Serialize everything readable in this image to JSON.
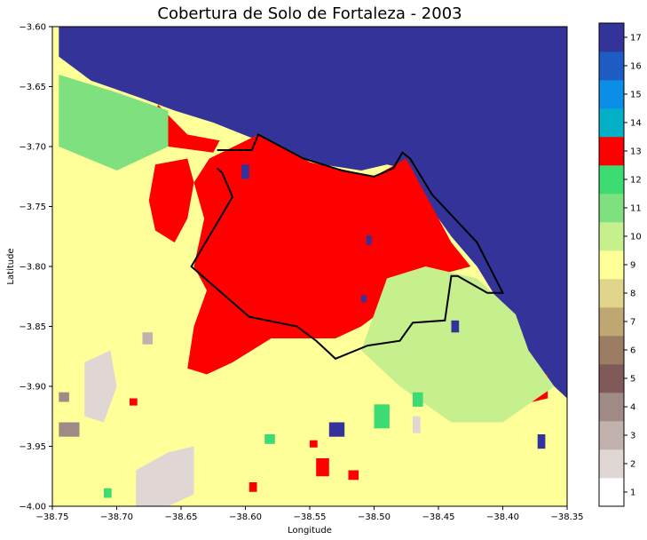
{
  "chart_data": {
    "type": "heatmap",
    "title": "Cobertura de Solo de Fortaleza - 2003",
    "xlabel": "Longitude",
    "ylabel": "Latitude",
    "xlim": [
      -38.75,
      -38.35
    ],
    "ylim": [
      -4.0,
      -3.6
    ],
    "xticks": [
      -38.75,
      -38.7,
      -38.65,
      -38.6,
      -38.55,
      -38.5,
      -38.45,
      -38.4,
      -38.35
    ],
    "xtick_labels": [
      "−38.75",
      "−38.70",
      "−38.65",
      "−38.60",
      "−38.55",
      "−38.50",
      "−38.45",
      "−38.40",
      "−38.35"
    ],
    "yticks": [
      -3.6,
      -3.65,
      -3.7,
      -3.75,
      -3.8,
      -3.85,
      -3.9,
      -3.95,
      -4.0
    ],
    "ytick_labels": [
      "−3.60",
      "−3.65",
      "−3.70",
      "−3.75",
      "−3.80",
      "−3.85",
      "−3.90",
      "−3.95",
      "−4.00"
    ],
    "grid": false,
    "colorbar": {
      "classes": [
        1,
        2,
        3,
        4,
        5,
        6,
        7,
        8,
        9,
        10,
        11,
        12,
        13,
        14,
        15,
        16,
        17
      ],
      "labels": [
        "1",
        "2",
        "3",
        "4",
        "5",
        "6",
        "7",
        "8",
        "9",
        "10",
        "11",
        "12",
        "13",
        "14",
        "15",
        "16",
        "17"
      ],
      "colors": [
        "#ffffff",
        "#e0d6d4",
        "#c2b2ae",
        "#a08a86",
        "#7f5a58",
        "#9c7c62",
        "#bfa774",
        "#e0d58a",
        "#ffff99",
        "#c6ef8e",
        "#7ee07e",
        "#3ddc72",
        "#ff0000",
        "#04b0c8",
        "#0a8ee8",
        "#1e5cc4",
        "#333399"
      ]
    },
    "regions": [
      {
        "class": 17,
        "name": "ocean",
        "polygon": [
          [
            -38.745,
            -3.6
          ],
          [
            -38.35,
            -3.6
          ],
          [
            -38.35,
            -3.91
          ],
          [
            -38.37,
            -3.89
          ],
          [
            -38.385,
            -3.865
          ],
          [
            -38.4,
            -3.835
          ],
          [
            -38.42,
            -3.8
          ],
          [
            -38.44,
            -3.775
          ],
          [
            -38.46,
            -3.745
          ],
          [
            -38.47,
            -3.72
          ],
          [
            -38.49,
            -3.715
          ],
          [
            -38.51,
            -3.72
          ],
          [
            -38.54,
            -3.715
          ],
          [
            -38.57,
            -3.705
          ],
          [
            -38.59,
            -3.695
          ],
          [
            -38.625,
            -3.68
          ],
          [
            -38.655,
            -3.67
          ],
          [
            -38.68,
            -3.66
          ],
          [
            -38.72,
            -3.645
          ],
          [
            -38.745,
            -3.625
          ]
        ]
      },
      {
        "class": 13,
        "name": "urban-core",
        "polygon": [
          [
            -38.628,
            -3.71
          ],
          [
            -38.59,
            -3.69
          ],
          [
            -38.55,
            -3.713
          ],
          [
            -38.5,
            -3.725
          ],
          [
            -38.475,
            -3.71
          ],
          [
            -38.46,
            -3.74
          ],
          [
            -38.44,
            -3.78
          ],
          [
            -38.425,
            -3.8
          ],
          [
            -38.46,
            -3.81
          ],
          [
            -38.485,
            -3.83
          ],
          [
            -38.51,
            -3.85
          ],
          [
            -38.53,
            -3.86
          ],
          [
            -38.56,
            -3.86
          ],
          [
            -38.58,
            -3.86
          ],
          [
            -38.61,
            -3.88
          ],
          [
            -38.63,
            -3.89
          ],
          [
            -38.645,
            -3.885
          ],
          [
            -38.64,
            -3.85
          ],
          [
            -38.63,
            -3.82
          ],
          [
            -38.64,
            -3.8
          ],
          [
            -38.632,
            -3.76
          ],
          [
            -38.64,
            -3.73
          ]
        ]
      },
      {
        "class": 13,
        "name": "urban-northwest",
        "polygon": [
          [
            -38.67,
            -3.715
          ],
          [
            -38.645,
            -3.71
          ],
          [
            -38.64,
            -3.73
          ],
          [
            -38.645,
            -3.76
          ],
          [
            -38.655,
            -3.78
          ],
          [
            -38.67,
            -3.77
          ],
          [
            -38.675,
            -3.745
          ]
        ]
      },
      {
        "class": 13,
        "name": "urban-coast-north",
        "polygon": [
          [
            -38.668,
            -3.665
          ],
          [
            -38.645,
            -3.69
          ],
          [
            -38.62,
            -3.695
          ],
          [
            -38.625,
            -3.705
          ],
          [
            -38.66,
            -3.7
          ],
          [
            -38.672,
            -3.685
          ]
        ]
      },
      {
        "class": 13,
        "name": "urban-east",
        "polygon": [
          [
            -38.385,
            -3.89
          ],
          [
            -38.365,
            -3.89
          ],
          [
            -38.365,
            -3.91
          ],
          [
            -38.385,
            -3.915
          ],
          [
            -38.395,
            -3.905
          ]
        ]
      },
      {
        "class": 13,
        "name": "urban-south",
        "polygon": [
          [
            -38.545,
            -3.96
          ],
          [
            -38.535,
            -3.96
          ],
          [
            -38.535,
            -3.975
          ],
          [
            -38.545,
            -3.975
          ]
        ]
      },
      {
        "class": 2,
        "name": "bare-soil-west",
        "polygon": [
          [
            -38.725,
            -3.88
          ],
          [
            -38.705,
            -3.87
          ],
          [
            -38.7,
            -3.9
          ],
          [
            -38.71,
            -3.93
          ],
          [
            -38.725,
            -3.925
          ]
        ]
      },
      {
        "class": 2,
        "name": "bare-soil-south",
        "polygon": [
          [
            -38.685,
            -3.97
          ],
          [
            -38.66,
            -3.955
          ],
          [
            -38.64,
            -3.95
          ],
          [
            -38.64,
            -3.99
          ],
          [
            -38.66,
            -4.0
          ],
          [
            -38.685,
            -4.0
          ]
        ]
      },
      {
        "class": 11,
        "name": "vegetation-band",
        "polygon": [
          [
            -38.745,
            -3.64
          ],
          [
            -38.7,
            -3.655
          ],
          [
            -38.66,
            -3.67
          ],
          [
            -38.66,
            -3.7
          ],
          [
            -38.7,
            -3.72
          ],
          [
            -38.745,
            -3.7
          ]
        ]
      },
      {
        "class": 10,
        "name": "vegetation-east",
        "polygon": [
          [
            -38.49,
            -3.81
          ],
          [
            -38.46,
            -3.8
          ],
          [
            -38.42,
            -3.81
          ],
          [
            -38.39,
            -3.84
          ],
          [
            -38.38,
            -3.87
          ],
          [
            -38.36,
            -3.9
          ],
          [
            -38.4,
            -3.93
          ],
          [
            -38.44,
            -3.93
          ],
          [
            -38.48,
            -3.9
          ],
          [
            -38.51,
            -3.87
          ]
        ]
      }
    ],
    "patches": [
      {
        "class": 17,
        "x": -38.603,
        "y": -3.715,
        "w": 0.006,
        "h": 0.012
      },
      {
        "class": 17,
        "x": -38.535,
        "y": -3.93,
        "w": 0.012,
        "h": 0.012
      },
      {
        "class": 17,
        "x": -38.44,
        "y": -3.845,
        "w": 0.006,
        "h": 0.01
      },
      {
        "class": 17,
        "x": -38.506,
        "y": -3.774,
        "w": 0.004,
        "h": 0.008
      },
      {
        "class": 17,
        "x": -38.373,
        "y": -3.94,
        "w": 0.006,
        "h": 0.012
      },
      {
        "class": 17,
        "x": -38.51,
        "y": -3.824,
        "w": 0.004,
        "h": 0.006
      },
      {
        "class": 12,
        "x": -38.5,
        "y": -3.915,
        "w": 0.012,
        "h": 0.02
      },
      {
        "class": 12,
        "x": -38.47,
        "y": -3.905,
        "w": 0.008,
        "h": 0.012
      },
      {
        "class": 12,
        "x": -38.585,
        "y": -3.94,
        "w": 0.008,
        "h": 0.008
      },
      {
        "class": 13,
        "x": -38.597,
        "y": -3.98,
        "w": 0.006,
        "h": 0.008
      },
      {
        "class": 13,
        "x": -38.52,
        "y": -3.97,
        "w": 0.008,
        "h": 0.008
      },
      {
        "class": 13,
        "x": -38.55,
        "y": -3.945,
        "w": 0.006,
        "h": 0.006
      },
      {
        "class": 13,
        "x": -38.69,
        "y": -3.91,
        "w": 0.006,
        "h": 0.006
      },
      {
        "class": 2,
        "x": -38.47,
        "y": -3.925,
        "w": 0.006,
        "h": 0.014
      },
      {
        "class": 4,
        "x": -38.745,
        "y": -3.93,
        "w": 0.016,
        "h": 0.012
      },
      {
        "class": 4,
        "x": -38.745,
        "y": -3.905,
        "w": 0.008,
        "h": 0.008
      },
      {
        "class": 3,
        "x": -38.68,
        "y": -3.855,
        "w": 0.008,
        "h": 0.01
      },
      {
        "class": 12,
        "x": -38.71,
        "y": -3.985,
        "w": 0.006,
        "h": 0.008
      }
    ],
    "boundary": [
      [
        -38.622,
        -3.703
      ],
      [
        -38.595,
        -3.703
      ],
      [
        -38.59,
        -3.69
      ],
      [
        -38.555,
        -3.71
      ],
      [
        -38.525,
        -3.72
      ],
      [
        -38.5,
        -3.725
      ],
      [
        -38.485,
        -3.718
      ],
      [
        -38.478,
        -3.705
      ],
      [
        -38.472,
        -3.71
      ],
      [
        -38.455,
        -3.74
      ],
      [
        -38.42,
        -3.78
      ],
      [
        -38.4,
        -3.822
      ],
      [
        -38.412,
        -3.822
      ],
      [
        -38.435,
        -3.808
      ],
      [
        -38.44,
        -3.808
      ],
      [
        -38.445,
        -3.845
      ],
      [
        -38.47,
        -3.847
      ],
      [
        -38.48,
        -3.862
      ],
      [
        -38.505,
        -3.866
      ],
      [
        -38.53,
        -3.877
      ],
      [
        -38.545,
        -3.862
      ],
      [
        -38.56,
        -3.85
      ],
      [
        -38.597,
        -3.842
      ],
      [
        -38.642,
        -3.8
      ],
      [
        -38.61,
        -3.742
      ],
      [
        -38.618,
        -3.722
      ],
      [
        -38.622,
        -3.718
      ]
    ]
  }
}
